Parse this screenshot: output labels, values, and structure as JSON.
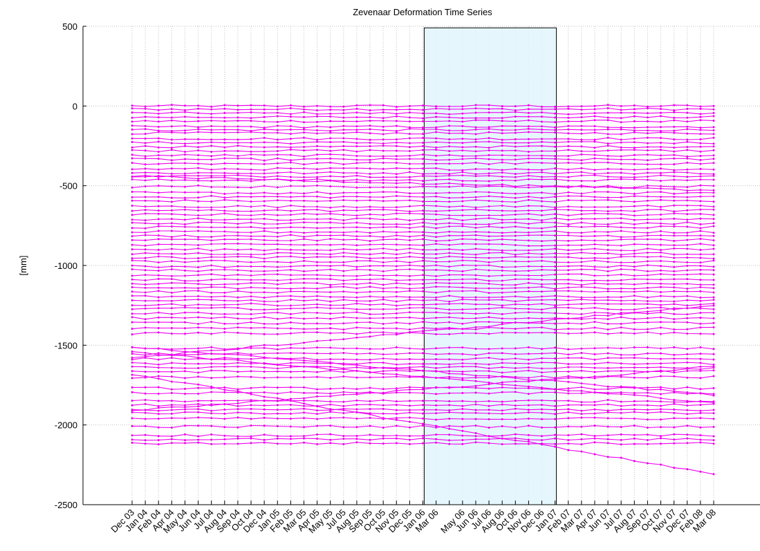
{
  "chart_data": {
    "type": "line",
    "title": "Zevenaar Deformation Time Series",
    "xlabel": "",
    "ylabel": "[mm]",
    "ylim": [
      -2500,
      500
    ],
    "yticks": [
      500,
      0,
      -500,
      -1000,
      -1500,
      -2000,
      -2500
    ],
    "grid": true,
    "legend": "none",
    "colors": {
      "series": "#ee00ee",
      "highlight_fill": "#e0f6fd",
      "highlight_border": "#000000",
      "grid": "#bfbfbf",
      "axis": "#000000"
    },
    "categories": [
      "Dec 03",
      "Jan 04",
      "Feb 04",
      "Apr 04",
      "May 04",
      "Jun 04",
      "Jul 04",
      "Aug 04",
      "Sep 04",
      "Oct 04",
      "Dec 04",
      "Jan 05",
      "Feb 05",
      "Mar 05",
      "Apr 05",
      "May 05",
      "Jul 05",
      "Aug 05",
      "Sep 05",
      "Oct 05",
      "Nov 05",
      "Dec 05",
      "Jan 06",
      "Mar 06",
      "",
      "May 06",
      "Jun 06",
      "Jul 06",
      "Aug 06",
      "Oct 06",
      "Nov 06",
      "Dec 06",
      "Jan 07",
      "Feb 07",
      "Mar 07",
      "Apr 07",
      "Jun 07",
      "Jul 07",
      "Aug 07",
      "Sep 07",
      "Oct 07",
      "Nov 07",
      "Dec 07",
      "Feb 08",
      "Mar 08"
    ],
    "highlight_range": {
      "from_index": 22.1,
      "to_index": 32.1,
      "y_from": -2500,
      "y_to": 490
    },
    "flat_series_levels": [
      0,
      -20,
      -45,
      -70,
      -95,
      -130,
      -150,
      -170,
      -205,
      -230,
      -255,
      -280,
      -310,
      -335,
      -360,
      -395,
      -420,
      -440,
      -465,
      -505,
      -545,
      -570,
      -595,
      -630,
      -655,
      -680,
      -710,
      -735,
      -760,
      -790,
      -815,
      -840,
      -870,
      -900,
      -925,
      -950,
      -975,
      -1005,
      -1030,
      -1060,
      -1090,
      -1115,
      -1140,
      -1165,
      -1195,
      -1220,
      -1245,
      -1270,
      -1300,
      -1330,
      -1360,
      -1395,
      -1425,
      -1520,
      -1555,
      -1585,
      -1615,
      -1640,
      -1665,
      -1700,
      -1770,
      -1800,
      -1850,
      -1875,
      -1905,
      -1925,
      -1960,
      -2010,
      -2065,
      -2090,
      -2115
    ],
    "trend_series": [
      {
        "start": -1540,
        "end": -1860
      },
      {
        "start": -1580,
        "end": -1250
      },
      {
        "start": -1680,
        "end": -2310
      },
      {
        "start": -1910,
        "end": -1640
      },
      {
        "start": -1510,
        "end": -1810
      },
      {
        "start": -440,
        "end": -530
      }
    ]
  }
}
